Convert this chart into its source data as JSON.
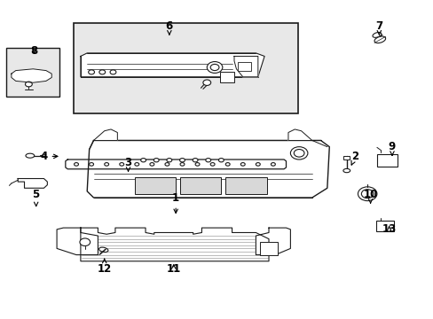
{
  "bg_color": "#ffffff",
  "line_color": "#1a1a1a",
  "dot_color": "#cccccc",
  "figsize": [
    4.89,
    3.6
  ],
  "dpi": 100,
  "labels": {
    "1": [
      0.405,
      0.62,
      0.405,
      0.68
    ],
    "2": [
      0.82,
      0.49,
      0.81,
      0.52
    ],
    "3": [
      0.295,
      0.51,
      0.295,
      0.54
    ],
    "4": [
      0.1,
      0.49,
      0.14,
      0.49
    ],
    "5": [
      0.082,
      0.61,
      0.082,
      0.65
    ],
    "6": [
      0.39,
      0.08,
      0.39,
      0.11
    ],
    "7": [
      0.875,
      0.08,
      0.875,
      0.11
    ],
    "8": [
      0.078,
      0.158,
      0.078,
      0.175
    ],
    "9": [
      0.905,
      0.46,
      0.905,
      0.49
    ],
    "10": [
      0.855,
      0.61,
      0.855,
      0.64
    ],
    "11": [
      0.4,
      0.845,
      0.4,
      0.82
    ],
    "12": [
      0.24,
      0.845,
      0.24,
      0.81
    ],
    "13": [
      0.898,
      0.72,
      0.898,
      0.7
    ]
  }
}
